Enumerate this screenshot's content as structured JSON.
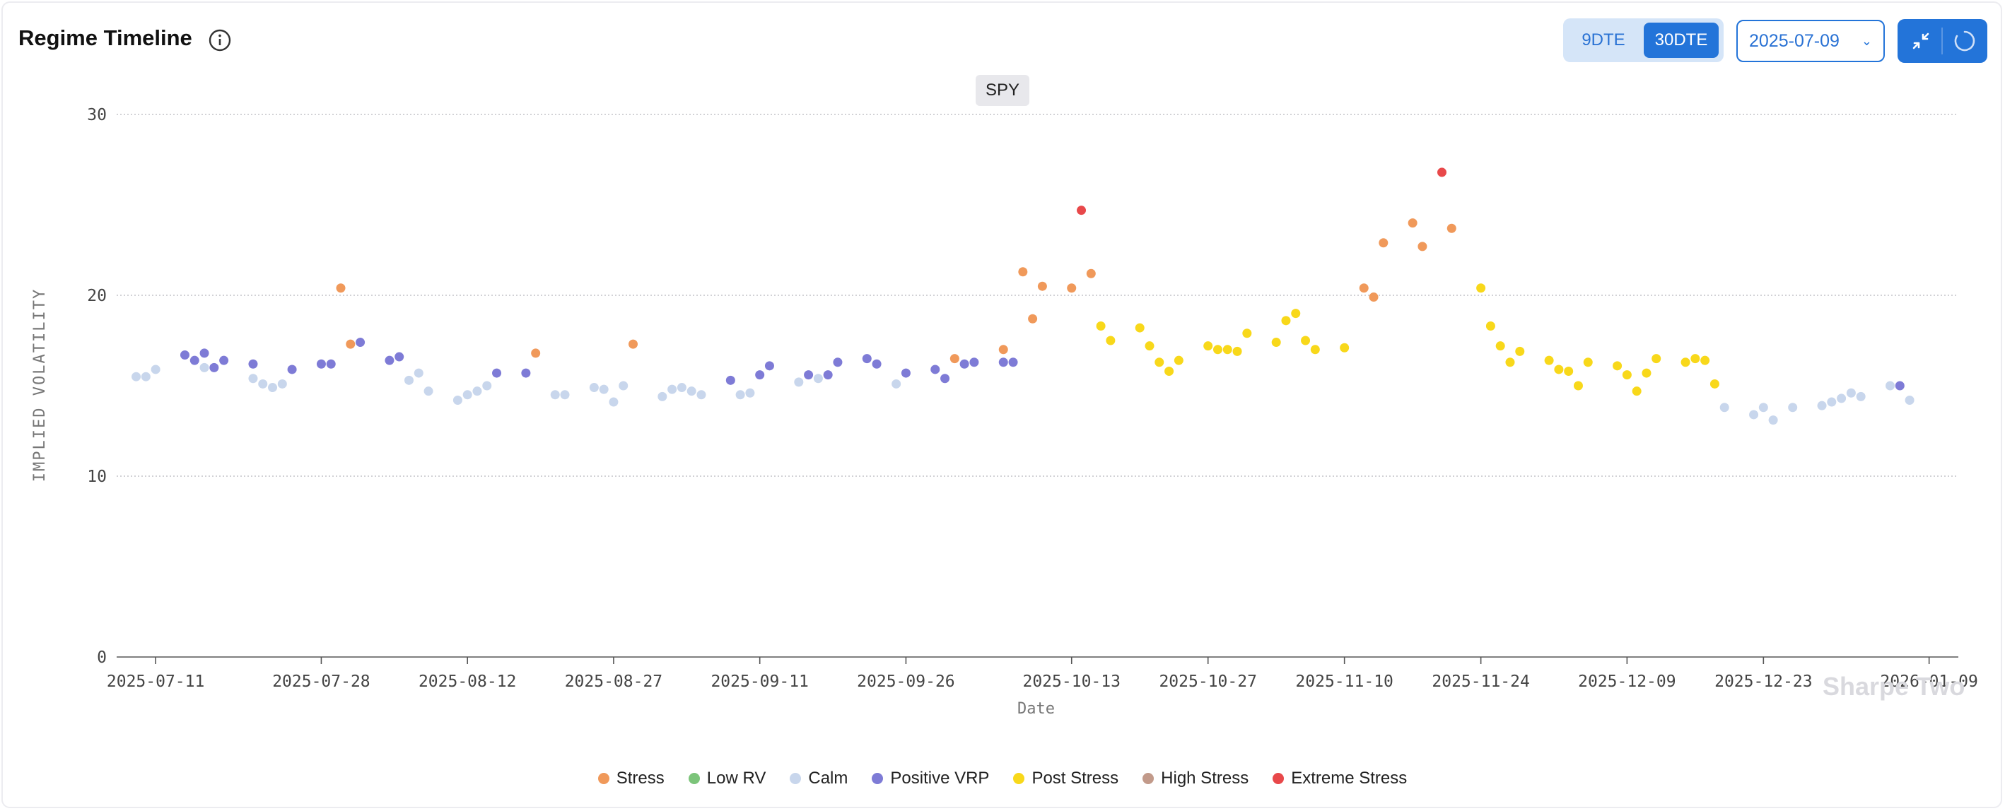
{
  "header": {
    "title": "Regime Timeline",
    "dte_options": [
      "9DTE",
      "30DTE"
    ],
    "dte_selected": "30DTE",
    "date_value": "2025-07-09"
  },
  "symbol_badge": "SPY",
  "watermark": "Sharpe Two",
  "colors": {
    "Stress": "#f0995a",
    "Low RV": "#7cc47a",
    "Calm": "#c8d6ec",
    "Positive VRP": "#7e7bd6",
    "Post Stress": "#f8d81a",
    "High Stress": "#c29a8a",
    "Extreme Stress": "#e8484a",
    "accent": "#2374d9"
  },
  "chart_data": {
    "type": "scatter",
    "xlabel": "Date",
    "ylabel": "IMPLIED VOLATILITY",
    "ylim": [
      0,
      30
    ],
    "yticks": [
      0,
      10,
      20,
      30
    ],
    "xlim": [
      "2025-07-07",
      "2026-01-12"
    ],
    "xticks": [
      "2025-07-11",
      "2025-07-28",
      "2025-08-12",
      "2025-08-27",
      "2025-09-11",
      "2025-09-26",
      "2025-10-13",
      "2025-10-27",
      "2025-11-10",
      "2025-11-24",
      "2025-12-09",
      "2025-12-23",
      "2026-01-09"
    ],
    "grid": true,
    "legend_position": "bottom",
    "legend": [
      "Stress",
      "Low RV",
      "Calm",
      "Positive VRP",
      "Post Stress",
      "High Stress",
      "Extreme Stress"
    ],
    "series": [
      {
        "name": "Calm",
        "points": [
          [
            "2025-07-09",
            15.5
          ],
          [
            "2025-07-10",
            15.5
          ],
          [
            "2025-07-11",
            15.9
          ],
          [
            "2025-07-16",
            16.0
          ],
          [
            "2025-07-21",
            15.4
          ],
          [
            "2025-07-22",
            15.1
          ],
          [
            "2025-07-23",
            14.9
          ],
          [
            "2025-07-24",
            15.1
          ],
          [
            "2025-08-06",
            15.3
          ],
          [
            "2025-08-07",
            15.7
          ],
          [
            "2025-08-08",
            14.7
          ],
          [
            "2025-08-11",
            14.2
          ],
          [
            "2025-08-12",
            14.5
          ],
          [
            "2025-08-13",
            14.7
          ],
          [
            "2025-08-14",
            15.0
          ],
          [
            "2025-08-21",
            14.5
          ],
          [
            "2025-08-22",
            14.5
          ],
          [
            "2025-08-25",
            14.9
          ],
          [
            "2025-08-26",
            14.8
          ],
          [
            "2025-08-27",
            14.1
          ],
          [
            "2025-08-28",
            15.0
          ],
          [
            "2025-09-01",
            14.4
          ],
          [
            "2025-09-02",
            14.8
          ],
          [
            "2025-09-03",
            14.9
          ],
          [
            "2025-09-04",
            14.7
          ],
          [
            "2025-09-05",
            14.5
          ],
          [
            "2025-09-09",
            14.5
          ],
          [
            "2025-09-10",
            14.6
          ],
          [
            "2025-09-15",
            15.2
          ],
          [
            "2025-09-17",
            15.4
          ],
          [
            "2025-09-25",
            15.1
          ],
          [
            "2025-12-19",
            13.8
          ],
          [
            "2025-12-22",
            13.4
          ],
          [
            "2025-12-23",
            13.8
          ],
          [
            "2025-12-24",
            13.1
          ],
          [
            "2025-12-26",
            13.8
          ],
          [
            "2025-12-29",
            13.9
          ],
          [
            "2025-12-30",
            14.1
          ],
          [
            "2025-12-31",
            14.3
          ],
          [
            "2026-01-01",
            14.6
          ],
          [
            "2026-01-02",
            14.4
          ],
          [
            "2026-01-05",
            15.0
          ],
          [
            "2026-01-07",
            14.2
          ]
        ]
      },
      {
        "name": "Positive VRP",
        "points": [
          [
            "2025-07-14",
            16.7
          ],
          [
            "2025-07-15",
            16.4
          ],
          [
            "2025-07-16",
            16.8
          ],
          [
            "2025-07-17",
            16.0
          ],
          [
            "2025-07-18",
            16.4
          ],
          [
            "2025-07-21",
            16.2
          ],
          [
            "2025-07-25",
            15.9
          ],
          [
            "2025-07-28",
            16.2
          ],
          [
            "2025-07-29",
            16.2
          ],
          [
            "2025-08-01",
            17.4
          ],
          [
            "2025-08-04",
            16.4
          ],
          [
            "2025-08-05",
            16.6
          ],
          [
            "2025-08-15",
            15.7
          ],
          [
            "2025-08-18",
            15.7
          ],
          [
            "2025-09-08",
            15.3
          ],
          [
            "2025-09-11",
            15.6
          ],
          [
            "2025-09-12",
            16.1
          ],
          [
            "2025-09-16",
            15.6
          ],
          [
            "2025-09-18",
            15.6
          ],
          [
            "2025-09-19",
            16.3
          ],
          [
            "2025-09-22",
            16.5
          ],
          [
            "2025-09-23",
            16.2
          ],
          [
            "2025-09-26",
            15.7
          ],
          [
            "2025-09-29",
            15.9
          ],
          [
            "2025-09-30",
            15.4
          ],
          [
            "2025-10-02",
            16.2
          ],
          [
            "2025-10-03",
            16.3
          ],
          [
            "2025-10-06",
            16.3
          ],
          [
            "2025-10-07",
            16.3
          ],
          [
            "2026-01-06",
            15.0
          ]
        ]
      },
      {
        "name": "Stress",
        "points": [
          [
            "2025-07-30",
            20.4
          ],
          [
            "2025-07-31",
            17.3
          ],
          [
            "2025-08-19",
            16.8
          ],
          [
            "2025-08-29",
            17.3
          ],
          [
            "2025-10-01",
            16.5
          ],
          [
            "2025-10-06",
            17.0
          ],
          [
            "2025-10-08",
            21.3
          ],
          [
            "2025-10-09",
            18.7
          ],
          [
            "2025-10-10",
            20.5
          ],
          [
            "2025-10-13",
            20.4
          ],
          [
            "2025-10-15",
            21.2
          ],
          [
            "2025-11-12",
            20.4
          ],
          [
            "2025-11-13",
            19.9
          ],
          [
            "2025-11-14",
            22.9
          ],
          [
            "2025-11-17",
            24.0
          ],
          [
            "2025-11-18",
            22.7
          ],
          [
            "2025-11-21",
            23.7
          ]
        ]
      },
      {
        "name": "Post Stress",
        "points": [
          [
            "2025-10-16",
            18.3
          ],
          [
            "2025-10-17",
            17.5
          ],
          [
            "2025-10-20",
            18.2
          ],
          [
            "2025-10-21",
            17.2
          ],
          [
            "2025-10-22",
            16.3
          ],
          [
            "2025-10-23",
            15.8
          ],
          [
            "2025-10-24",
            16.4
          ],
          [
            "2025-10-27",
            17.2
          ],
          [
            "2025-10-28",
            17.0
          ],
          [
            "2025-10-29",
            17.0
          ],
          [
            "2025-10-30",
            16.9
          ],
          [
            "2025-10-31",
            17.9
          ],
          [
            "2025-11-03",
            17.4
          ],
          [
            "2025-11-04",
            18.6
          ],
          [
            "2025-11-05",
            19.0
          ],
          [
            "2025-11-06",
            17.5
          ],
          [
            "2025-11-07",
            17.0
          ],
          [
            "2025-11-10",
            17.1
          ],
          [
            "2025-11-24",
            20.4
          ],
          [
            "2025-11-25",
            18.3
          ],
          [
            "2025-11-26",
            17.2
          ],
          [
            "2025-11-27",
            16.3
          ],
          [
            "2025-11-28",
            16.9
          ],
          [
            "2025-12-01",
            16.4
          ],
          [
            "2025-12-02",
            15.9
          ],
          [
            "2025-12-03",
            15.8
          ],
          [
            "2025-12-04",
            15.0
          ],
          [
            "2025-12-05",
            16.3
          ],
          [
            "2025-12-08",
            16.1
          ],
          [
            "2025-12-09",
            15.6
          ],
          [
            "2025-12-10",
            14.7
          ],
          [
            "2025-12-11",
            15.7
          ],
          [
            "2025-12-12",
            16.5
          ],
          [
            "2025-12-15",
            16.3
          ],
          [
            "2025-12-16",
            16.5
          ],
          [
            "2025-12-17",
            16.4
          ],
          [
            "2025-12-18",
            15.1
          ]
        ]
      },
      {
        "name": "Extreme Stress",
        "points": [
          [
            "2025-10-14",
            24.7
          ],
          [
            "2025-11-20",
            26.8
          ]
        ]
      },
      {
        "name": "Low RV",
        "points": []
      },
      {
        "name": "High Stress",
        "points": []
      }
    ]
  }
}
